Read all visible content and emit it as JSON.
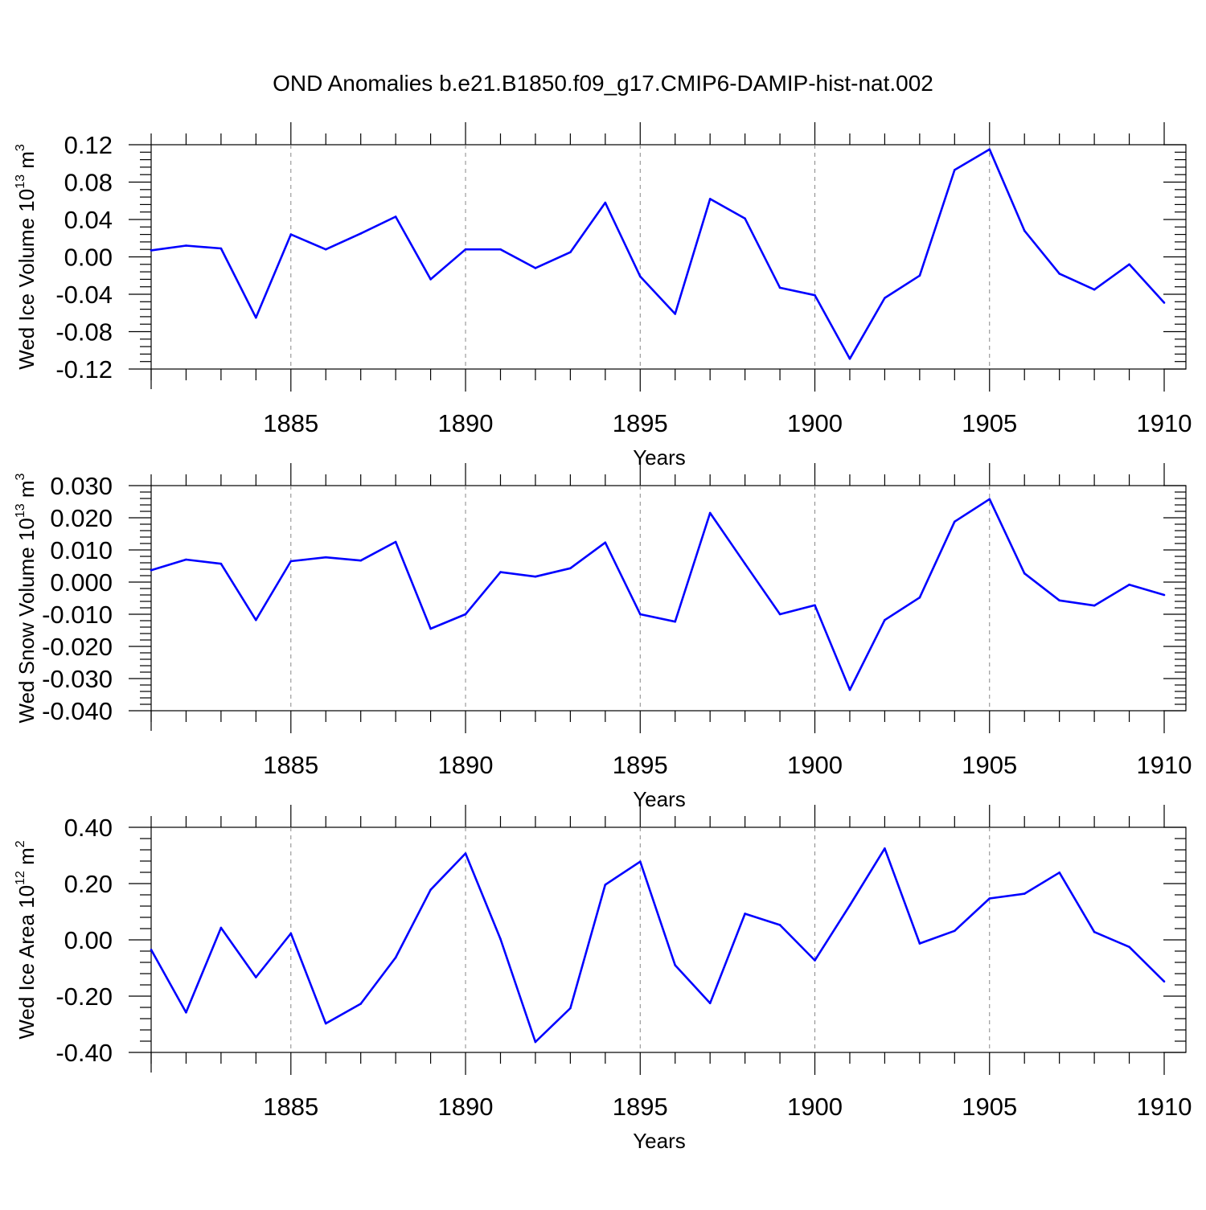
{
  "figure": {
    "title": "OND Anomalies b.e21.B1850.f09_g17.CMIP6-DAMIP-hist-nat.002",
    "line_color": "#0000ff",
    "grid_color": "#888888"
  },
  "chart_data": [
    {
      "type": "line",
      "title": "",
      "xlabel": "Years",
      "ylabel": {
        "text": "Wed Ice Volume 10",
        "sup": "13",
        "unit": " m",
        "unit_sup": "3"
      },
      "xlim": [
        1881,
        1910
      ],
      "ylim": [
        -0.12,
        0.12
      ],
      "xticks": [
        1885,
        1890,
        1895,
        1900,
        1905,
        1910
      ],
      "yticks": [
        -0.12,
        -0.08,
        -0.04,
        0.0,
        0.04,
        0.08,
        0.12
      ],
      "ytick_labels": [
        "-0.12",
        "-0.08",
        "-0.04",
        "0.00",
        "0.04",
        "0.08",
        "0.12"
      ],
      "grid": "vertical dashed at major x ticks",
      "x": [
        1881,
        1882,
        1883,
        1884,
        1885,
        1886,
        1887,
        1888,
        1889,
        1890,
        1891,
        1892,
        1893,
        1894,
        1895,
        1896,
        1897,
        1898,
        1899,
        1900,
        1901,
        1902,
        1903,
        1904,
        1905,
        1906,
        1907,
        1908,
        1909,
        1910
      ],
      "series": [
        {
          "values": [
            0.007,
            0.012,
            0.009,
            -0.065,
            0.024,
            0.008,
            0.025,
            0.043,
            -0.024,
            0.008,
            0.008,
            -0.012,
            0.005,
            0.058,
            -0.021,
            -0.061,
            0.062,
            0.041,
            -0.033,
            -0.041,
            -0.109,
            -0.044,
            -0.02,
            0.093,
            0.115,
            0.028,
            -0.018,
            -0.035,
            -0.008,
            -0.049
          ]
        }
      ]
    },
    {
      "type": "line",
      "title": "",
      "xlabel": "Years",
      "ylabel": {
        "text": "Wed Snow Volume 10",
        "sup": "13",
        "unit": " m",
        "unit_sup": "3"
      },
      "xlim": [
        1881,
        1910
      ],
      "ylim": [
        -0.04,
        0.03
      ],
      "xticks": [
        1885,
        1890,
        1895,
        1900,
        1905,
        1910
      ],
      "yticks": [
        -0.04,
        -0.03,
        -0.02,
        -0.01,
        0.0,
        0.01,
        0.02,
        0.03
      ],
      "ytick_labels": [
        "-0.040",
        "-0.030",
        "-0.020",
        "-0.010",
        "0.000",
        "0.010",
        "0.020",
        "0.030"
      ],
      "grid": "vertical dashed at major x ticks",
      "x": [
        1881,
        1882,
        1883,
        1884,
        1885,
        1886,
        1887,
        1888,
        1889,
        1890,
        1891,
        1892,
        1893,
        1894,
        1895,
        1896,
        1897,
        1898,
        1899,
        1900,
        1901,
        1902,
        1903,
        1904,
        1905,
        1906,
        1907,
        1908,
        1909,
        1910
      ],
      "series": [
        {
          "values": [
            0.0037,
            0.007,
            0.0057,
            -0.0118,
            0.0065,
            0.0077,
            0.0067,
            0.0125,
            -0.0145,
            -0.01,
            0.0031,
            0.0017,
            0.0043,
            0.0123,
            -0.01,
            -0.0123,
            0.0215,
            0.0057,
            -0.01,
            -0.0072,
            -0.0335,
            -0.0118,
            -0.0048,
            0.0188,
            0.0258,
            0.0027,
            -0.0057,
            -0.0073,
            -0.0008,
            -0.004
          ]
        }
      ]
    },
    {
      "type": "line",
      "title": "",
      "xlabel": "Years",
      "ylabel": {
        "text": "Wed Ice Area 10",
        "sup": "12",
        "unit": " m",
        "unit_sup": "2"
      },
      "xlim": [
        1881,
        1910
      ],
      "ylim": [
        -0.4,
        0.4
      ],
      "xticks": [
        1885,
        1890,
        1895,
        1900,
        1905,
        1910
      ],
      "yticks": [
        -0.4,
        -0.2,
        0.0,
        0.2,
        0.4
      ],
      "ytick_labels": [
        "-0.40",
        "-0.20",
        "0.00",
        "0.20",
        "0.40"
      ],
      "grid": "vertical dashed at major x ticks",
      "x": [
        1881,
        1882,
        1883,
        1884,
        1885,
        1886,
        1887,
        1888,
        1889,
        1890,
        1891,
        1892,
        1893,
        1894,
        1895,
        1896,
        1897,
        1898,
        1899,
        1900,
        1901,
        1902,
        1903,
        1904,
        1905,
        1906,
        1907,
        1908,
        1909,
        1910
      ],
      "series": [
        {
          "values": [
            -0.035,
            -0.258,
            0.043,
            -0.133,
            0.023,
            -0.297,
            -0.227,
            -0.063,
            0.178,
            0.307,
            0.003,
            -0.363,
            -0.243,
            0.196,
            0.278,
            -0.09,
            -0.225,
            0.093,
            0.053,
            -0.073,
            0.123,
            0.325,
            -0.013,
            0.032,
            0.147,
            0.164,
            0.239,
            0.028,
            -0.025,
            -0.148
          ]
        }
      ]
    }
  ]
}
